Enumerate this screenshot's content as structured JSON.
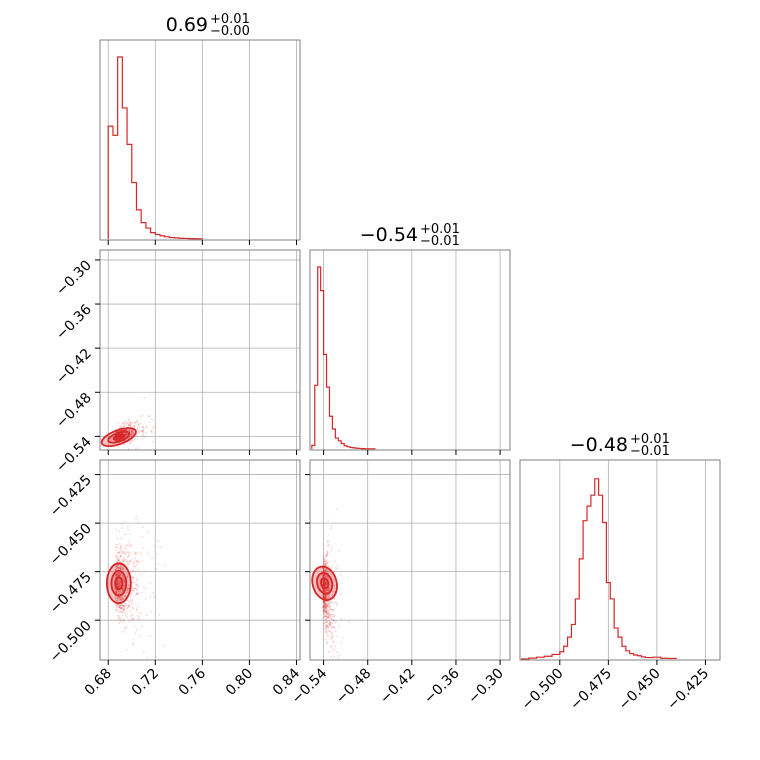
{
  "chart_data": {
    "type": "corner",
    "color": "#d62728",
    "params": [
      {
        "title": {
          "median": "0.69",
          "plus": "+0.01",
          "minus": "−0.00"
        },
        "ticks": [
          0.68,
          0.72,
          0.76,
          0.8,
          0.84
        ],
        "tick_labels": [
          "0.68",
          "0.72",
          "0.76",
          "0.80",
          "0.84"
        ],
        "range": [
          0.673,
          0.843
        ],
        "hist_x": [
          0.68,
          0.684,
          0.688,
          0.692,
          0.696,
          0.7,
          0.704,
          0.708,
          0.712,
          0.716,
          0.72,
          0.724,
          0.728,
          0.732,
          0.736,
          0.74,
          0.744,
          0.748,
          0.752,
          0.756,
          0.76
        ],
        "hist_y": [
          0.62,
          0.57,
          1.0,
          0.72,
          0.52,
          0.31,
          0.16,
          0.09,
          0.06,
          0.035,
          0.025,
          0.018,
          0.012,
          0.008,
          0.006,
          0.004,
          0.003,
          0.002,
          0.0015,
          0.001,
          0
        ]
      },
      {
        "title": {
          "median": "−0.54",
          "plus": "+0.01",
          "minus": "−0.01"
        },
        "ticks": [
          -0.54,
          -0.48,
          -0.42,
          -0.36,
          -0.3
        ],
        "tick_labels": [
          "−0.54",
          "−0.48",
          "−0.42",
          "−0.36",
          "−0.30"
        ],
        "range": [
          -0.5585,
          -0.2865
        ],
        "hist_x": [
          -0.556,
          -0.552,
          -0.548,
          -0.544,
          -0.54,
          -0.536,
          -0.532,
          -0.528,
          -0.524,
          -0.52,
          -0.516,
          -0.512,
          -0.508,
          -0.504,
          -0.5,
          -0.496,
          -0.492,
          -0.488,
          -0.484,
          -0.48,
          -0.47
        ],
        "hist_y": [
          0.02,
          0.35,
          1.0,
          0.87,
          0.52,
          0.34,
          0.18,
          0.11,
          0.06,
          0.045,
          0.03,
          0.018,
          0.012,
          0.008,
          0.006,
          0.004,
          0.003,
          0.002,
          0.001,
          0.001,
          0
        ]
      },
      {
        "title": {
          "median": "−0.48",
          "plus": "+0.01",
          "minus": "−0.01"
        },
        "ticks": [
          -0.5,
          -0.475,
          -0.45,
          -0.425
        ],
        "tick_labels": [
          "−0.500",
          "−0.475",
          "−0.450",
          "−0.425"
        ],
        "range": [
          -0.5205,
          -0.4175
        ],
        "hist_x": [
          -0.52,
          -0.516,
          -0.512,
          -0.508,
          -0.504,
          -0.5,
          -0.498,
          -0.496,
          -0.494,
          -0.492,
          -0.49,
          -0.488,
          -0.486,
          -0.484,
          -0.482,
          -0.48,
          -0.478,
          -0.476,
          -0.474,
          -0.472,
          -0.47,
          -0.468,
          -0.466,
          -0.464,
          -0.462,
          -0.46,
          -0.458,
          -0.456,
          -0.452,
          -0.448,
          -0.444,
          -0.44
        ],
        "hist_y": [
          0.0,
          0.005,
          0.01,
          0.015,
          0.025,
          0.04,
          0.07,
          0.12,
          0.19,
          0.33,
          0.55,
          0.76,
          0.84,
          0.9,
          0.99,
          0.9,
          0.75,
          0.42,
          0.33,
          0.17,
          0.12,
          0.07,
          0.045,
          0.03,
          0.022,
          0.018,
          0.012,
          0.008,
          0.01,
          0.004,
          0.003,
          0
        ]
      }
    ],
    "correlations": {
      "p0_p1": {
        "center": [
          0.686,
          -0.541
        ],
        "spread": [
          0.005,
          0.004
        ],
        "slope": 0.95
      },
      "p0_p2": {
        "center": [
          0.686,
          -0.481
        ],
        "spread": [
          0.005,
          0.007
        ],
        "slope": 0.0
      },
      "p1_p2": {
        "center": [
          -0.541,
          -0.481
        ],
        "spread": [
          0.004,
          0.007
        ],
        "slope": -0.8
      }
    },
    "grid": true
  }
}
